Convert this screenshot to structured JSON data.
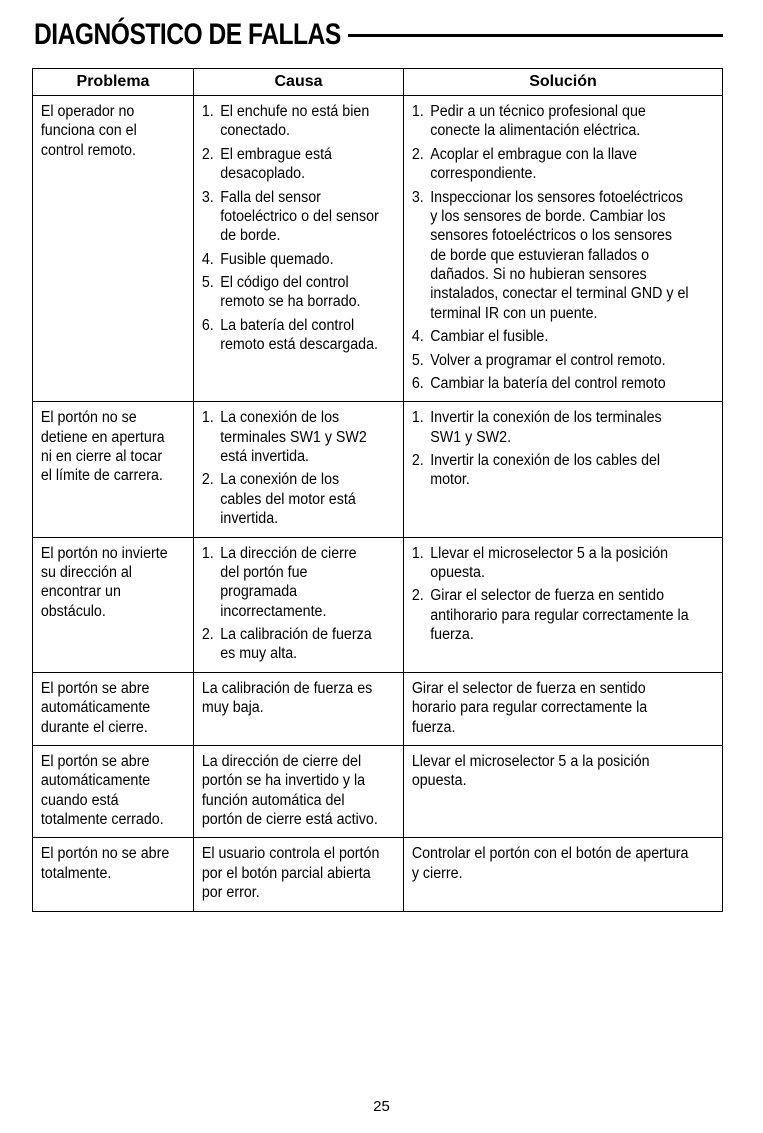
{
  "page_title": "DIAGNÓSTICO DE FALLAS",
  "page_number": "25",
  "table": {
    "headers": {
      "problem": "Problema",
      "cause": "Causa",
      "solution": "Solución"
    },
    "rows": [
      {
        "problem": "El operador no funciona con el control remoto.",
        "cause_items": [
          "El enchufe no está bien conectado.",
          "El embrague está desacoplado.",
          "Falla del sensor fotoeléctrico o del sensor de borde.",
          "Fusible quemado.",
          "El código del control remoto se ha borrado.",
          "La batería del control remoto está descargada."
        ],
        "solution_items": [
          "Pedir a un técnico profesional que conecte la alimentación eléctrica.",
          "Acoplar el embrague con la llave correspondiente.",
          "Inspeccionar los sensores fotoeléctricos y los sensores de borde. Cambiar los sensores fotoeléctricos o los sensores de borde que estuvieran fallados o dañados. Si no hubieran sensores instalados, conectar el terminal GND y el terminal IR con un puente.",
          "Cambiar el fusible.",
          "Volver a programar el control remoto.",
          "Cambiar la batería del control remoto"
        ]
      },
      {
        "problem": "El portón no se detiene en apertura ni en cierre al tocar el límite de carrera.",
        "cause_items": [
          "La conexión de los terminales SW1 y SW2 está invertida.",
          "La conexión de los cables del motor está invertida."
        ],
        "solution_items": [
          "Invertir la conexión de los terminales SW1 y SW2.",
          "Invertir la conexión de los cables del motor."
        ]
      },
      {
        "problem": "El portón no invierte su dirección al encontrar un obstáculo.",
        "cause_items": [
          "La dirección de cierre del portón fue programada incorrectamente.",
          "La calibración de fuerza es muy alta."
        ],
        "solution_items": [
          "Llevar el microselector 5 a la posición opuesta.",
          "Girar el selector de fuerza en sentido antihorario para regular correctamente la fuerza."
        ]
      },
      {
        "problem": "El portón se abre automáticamente durante el cierre.",
        "cause_plain": "La calibración de fuerza es muy baja.",
        "solution_plain": "Girar el selector de fuerza en sentido horario para regular correctamente la fuerza."
      },
      {
        "problem": "El portón se abre automáticamente cuando está totalmente cerrado.",
        "cause_plain": "La dirección de cierre del portón se ha invertido y la función automática del portón de cierre está activo.",
        "solution_plain": "Llevar el microselector 5 a la posición opuesta."
      },
      {
        "problem": "El portón no se abre totalmente.",
        "cause_plain": "El usuario controla el portón por el botón parcial abierta por error.",
        "solution_plain": "Controlar el portón con el botón de apertura y cierre."
      }
    ]
  }
}
